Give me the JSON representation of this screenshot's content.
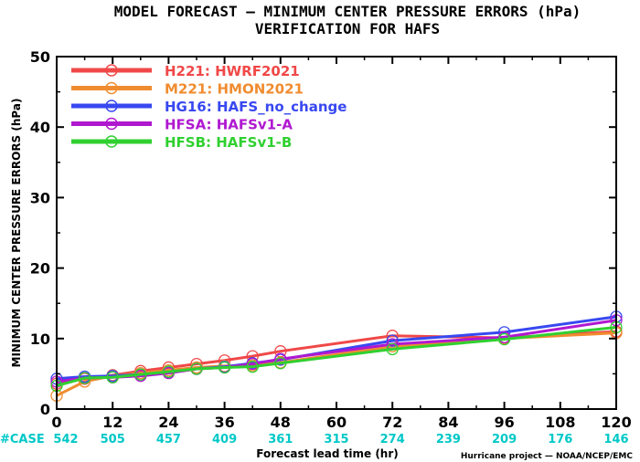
{
  "chart_data": {
    "type": "line",
    "title": "MODEL FORECAST — MINIMUM CENTER PRESSURE ERRORS (hPa)",
    "subtitle": "VERIFICATION FOR HAFS",
    "xlabel": "Forecast lead time (hr)",
    "ylabel": "MINIMUM CENTER PRESSURE ERRORS (hPa)",
    "xlim": [
      0,
      120
    ],
    "ylim": [
      0,
      50
    ],
    "xticks": [
      0,
      12,
      24,
      36,
      48,
      60,
      72,
      84,
      96,
      108,
      120
    ],
    "yticks": [
      0,
      10,
      20,
      30,
      40,
      50
    ],
    "grid": false,
    "legend_position": "top-left",
    "case_label": "#CASE",
    "case_x": [
      0,
      12,
      24,
      36,
      48,
      60,
      72,
      84,
      96,
      108,
      120
    ],
    "case_counts": [
      "542",
      "505",
      "457",
      "409",
      "361",
      "315",
      "274",
      "239",
      "209",
      "176",
      "146"
    ],
    "credit": "Hurricane project — NOAA/NCEP/EMC",
    "series": [
      {
        "name": "H221: HWRF2021",
        "color": "#f04848",
        "x": [
          0,
          6,
          12,
          18,
          24,
          30,
          36,
          42,
          48,
          72,
          96,
          120
        ],
        "y": [
          3.6,
          4.3,
          4.8,
          5.4,
          5.9,
          6.4,
          6.9,
          7.5,
          8.2,
          10.4,
          10.1,
          11.0
        ]
      },
      {
        "name": "M221: HMON2021",
        "color": "#f08c30",
        "x": [
          0,
          6,
          12,
          18,
          24,
          30,
          36,
          42,
          48,
          72,
          96,
          120
        ],
        "y": [
          1.9,
          3.9,
          4.7,
          5.1,
          5.5,
          5.9,
          6.1,
          6.2,
          6.6,
          8.9,
          10.0,
          10.8
        ]
      },
      {
        "name": "HG16: HAFS_no_change",
        "color": "#3848f0",
        "x": [
          0,
          6,
          12,
          18,
          24,
          30,
          36,
          42,
          48,
          72,
          96,
          120
        ],
        "y": [
          4.3,
          4.6,
          4.7,
          4.9,
          5.2,
          5.7,
          6.0,
          6.5,
          7.0,
          9.7,
          10.9,
          13.1
        ]
      },
      {
        "name": "HFSA: HAFSv1-A",
        "color": "#b018d0",
        "x": [
          0,
          6,
          12,
          18,
          24,
          30,
          36,
          42,
          48,
          72,
          96,
          120
        ],
        "y": [
          3.9,
          4.4,
          4.5,
          4.7,
          5.1,
          5.7,
          5.9,
          6.4,
          7.1,
          9.2,
          10.2,
          12.6
        ]
      },
      {
        "name": "HFSB: HAFSv1-B",
        "color": "#30d030",
        "x": [
          0,
          6,
          12,
          18,
          24,
          30,
          36,
          42,
          48,
          72,
          96,
          120
        ],
        "y": [
          3.3,
          4.4,
          4.5,
          4.9,
          5.3,
          5.7,
          5.9,
          6.0,
          6.5,
          8.5,
          9.9,
          11.6
        ]
      }
    ]
  }
}
